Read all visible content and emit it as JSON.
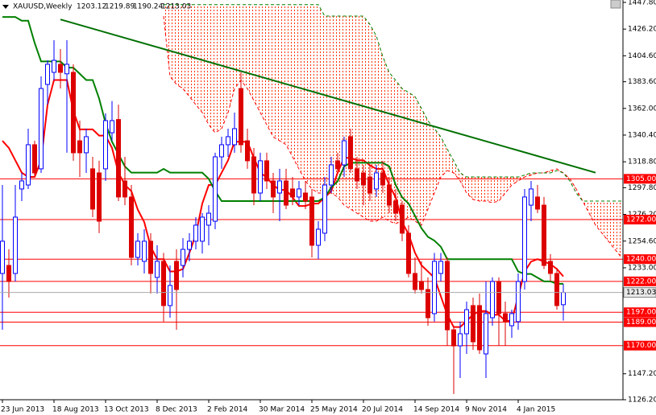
{
  "chart_data": {
    "type": "candlestick",
    "title": "XAUUSD,Weekly",
    "categories": [
      "23 Jun 2013",
      null,
      null,
      null,
      null,
      null,
      null,
      null,
      "18 Aug 2013",
      null,
      null,
      null,
      null,
      null,
      null,
      null,
      "13 Oct 2013",
      null,
      null,
      null,
      null,
      null,
      null,
      null,
      "8 Dec 2013",
      null,
      null,
      null,
      null,
      null,
      null,
      null,
      "2 Feb 2014",
      null,
      null,
      null,
      null,
      null,
      null,
      null,
      "30 Mar 2014",
      null,
      null,
      null,
      null,
      null,
      null,
      null,
      "25 May 2014",
      null,
      null,
      null,
      null,
      null,
      null,
      null,
      "20 Jul 2014",
      null,
      null,
      null,
      null,
      null,
      null,
      null,
      "14 Sep 2014",
      null,
      null,
      null,
      null,
      null,
      null,
      null,
      "9 Nov 2014",
      null,
      null,
      null,
      null,
      null,
      null,
      null,
      "4 Jan 2015",
      null,
      null,
      null,
      null,
      null,
      null,
      null,
      null,
      null,
      null,
      null,
      null,
      null,
      null,
      null,
      null
    ],
    "open": [
      1228.4,
      1234.9,
      1228.4,
      1296.8,
      1300,
      1332.6,
      1313.1,
      1381.4,
      1391.2,
      1397.7,
      1390,
      1391.2,
      1335.8,
      1326.1,
      1313.1,
      1309.8,
      1313.1,
      1342.3,
      1353,
      1303.3,
      1290.3,
      1241.4,
      1238.2,
      1254.5,
      1225.2,
      1238.2,
      1202.4,
      1238.2,
      1234.9,
      1247.9,
      1254.5,
      1254.5,
      1267.5,
      1270.7,
      1322.8,
      1332.6,
      1332.6,
      1378.1,
      1335.8,
      1322.8,
      1293.5,
      1319.6,
      1303.3,
      1293.5,
      1303.3,
      1296.8,
      1290.3,
      1293.5,
      1290.3,
      1251.2,
      1261,
      1300,
      1319.6,
      1316.3,
      1339.1,
      1313.1,
      1309.8,
      1306.5,
      1296.8,
      1309.8,
      1300,
      1287,
      1283.7,
      1261,
      1228.4,
      1221.9,
      1215.4,
      1195.9,
      1228.4,
      1238.2,
      1182.8,
      1169.8,
      1179.6,
      1202.4,
      1202.4,
      1163.3,
      1192.6,
      1221.9,
      1195.9,
      1186.1,
      1189.4,
      1221.9,
      1283.7,
      1290.3,
      1283.7,
      1238.2,
      1228.4,
      1203.12,
      null,
      null,
      null,
      null,
      null,
      null,
      null,
      null,
      null
    ],
    "high": [
      1300,
      1247.9,
      1300,
      1309.8,
      1345.6,
      1335.8,
      1387.9,
      1400.9,
      1417.2,
      1410,
      1417.2,
      1397.7,
      1352.1,
      1345.6,
      1322.8,
      1319.6,
      1358,
      1368,
      1365,
      1322.8,
      1300,
      1261,
      1264.2,
      1261,
      1251.2,
      1245,
      1234.9,
      1247.9,
      1257,
      1261,
      1274,
      1277.2,
      1283.7,
      1326.1,
      1339.1,
      1345.6,
      1358.6,
      1391.2,
      1345.6,
      1330,
      1326.1,
      1326.1,
      1309.8,
      1313.1,
      1313.1,
      1306.5,
      1303.3,
      1303.3,
      1296.8,
      1270.7,
      1306.5,
      1322.8,
      1326.1,
      1339.1,
      1345.6,
      1322.8,
      1316.3,
      1316.3,
      1316.3,
      1319.6,
      1306.5,
      1296.8,
      1287,
      1267.5,
      1241.4,
      1238.2,
      1225.2,
      1245,
      1245,
      1241.4,
      1186.1,
      1189.4,
      1205.6,
      1208.9,
      1212.1,
      1221.9,
      1225.2,
      1225.2,
      1205.6,
      1199.1,
      1228.4,
      1296.8,
      1303.3,
      1300,
      1290.3,
      1244,
      1233,
      1219.89,
      null,
      null,
      null,
      null,
      null,
      null,
      null,
      null,
      null
    ],
    "low": [
      1182.8,
      1208.9,
      1221.9,
      1287,
      1296.8,
      1306.5,
      1309.8,
      1365,
      1384.7,
      1378.1,
      1326.1,
      1319.6,
      1306.5,
      1309.8,
      1274,
      1261,
      1303.3,
      1335.8,
      1287,
      1283.7,
      1235,
      1234.9,
      1228.4,
      1212.1,
      1212.1,
      1189.4,
      1192.6,
      1182.8,
      1225.2,
      1238.2,
      1247.9,
      1244.5,
      1251.2,
      1264.2,
      1313.1,
      1322.8,
      1326.1,
      1326.1,
      1313.1,
      1283.7,
      1287,
      1296.8,
      1277.2,
      1270.7,
      1280.5,
      1283.7,
      1283.7,
      1280.5,
      1241.4,
      1240,
      1254.5,
      1293.5,
      1309.8,
      1306.5,
      1309.8,
      1296.8,
      1283.7,
      1287,
      1290.3,
      1293.5,
      1277.2,
      1270.7,
      1254.5,
      1225.2,
      1212.1,
      1212.1,
      1186.1,
      1189.4,
      1221.9,
      1169.8,
      1130.8,
      1143.8,
      1163.3,
      1166.6,
      1163.3,
      1143.8,
      1186.1,
      1169.8,
      1169.8,
      1176.3,
      1182.8,
      1215.4,
      1270.7,
      1277.2,
      1232,
      1222,
      1199.1,
      1190.24,
      null,
      null,
      null,
      null,
      null,
      null,
      null,
      null,
      null
    ],
    "close": [
      1254.5,
      1221.9,
      1274,
      1303.3,
      1332.6,
      1309.8,
      1378.1,
      1397.7,
      1400.9,
      1391.2,
      1397.7,
      1326.1,
      1326.1,
      1339.1,
      1280.5,
      1270.7,
      1352.1,
      1352.1,
      1290.3,
      1290.3,
      1241.4,
      1254.5,
      1254.5,
      1228.4,
      1238.2,
      1202.4,
      1218.7,
      1215.4,
      1247.9,
      1254.5,
      1267.5,
      1274,
      1277.2,
      1322.8,
      1332.6,
      1339.1,
      1345.6,
      1332.6,
      1319.6,
      1293.5,
      1319.6,
      1303.3,
      1290.3,
      1303.3,
      1283.7,
      1290.3,
      1296.8,
      1287,
      1251.2,
      1264.2,
      1300,
      1316.3,
      1313.1,
      1335.8,
      1313.1,
      1303.3,
      1300,
      1293.5,
      1309.8,
      1300,
      1283.7,
      1277.2,
      1261,
      1228.4,
      1215.4,
      1215.4,
      1192.6,
      1238.2,
      1238.2,
      1182.8,
      1169.8,
      1179.6,
      1199.1,
      1173.1,
      1166.6,
      1195.9,
      1221.9,
      1195.9,
      1189.4,
      1195.9,
      1221.9,
      1290.3,
      1296.8,
      1280.5,
      1234.9,
      1228.4,
      1202.4,
      1213.03,
      null,
      null,
      null,
      null,
      null,
      null,
      null,
      null,
      null
    ],
    "up_color": "#0000ff",
    "down_color": "#dd0000",
    "lines": [
      {
        "color": "#ff0000",
        "values": [
          1335.8,
          1330,
          1320,
          1310,
          1306.5,
          1306.5,
          1320,
          1365,
          1385,
          1385,
          1385,
          1360,
          1345,
          1345,
          1345,
          1340,
          1340,
          1330,
          1310,
          1300,
          1295,
          1280,
          1270,
          1250,
          1240,
          1240,
          1230,
          1230,
          1232,
          1245,
          1260,
          1285,
          1300,
          1300,
          1310,
          1320,
          1335,
          1335,
          1335,
          1322,
          1310,
          1306,
          1300,
          1296,
          1296,
          1290,
          1283,
          1283,
          1285,
          1285,
          1290,
          1295,
          1310,
          1322,
          1322,
          1320,
          1320,
          1316,
          1313,
          1313,
          1300,
          1290,
          1270,
          1260,
          1245,
          1235,
          1230,
          1225,
          1210,
          1195,
          1185,
          1185,
          1190,
          1195,
          1198,
          1198,
          1195,
          1195,
          1190,
          1190,
          1210,
          1230,
          1238,
          1240,
          1238,
          1236,
          1232,
          1226,
          null,
          null,
          null,
          null,
          null,
          null,
          null,
          null,
          null
        ]
      },
      {
        "color": "#008000",
        "values": [
          1436,
          1436,
          1436,
          1433,
          1433,
          1415,
          1400,
          1400,
          1400,
          1400,
          1395,
          1395,
          1390,
          1385,
          1385,
          1370,
          1350,
          1335,
          1325,
          1315,
          1310,
          1310,
          1310,
          1310,
          1310,
          1313,
          1310,
          1310,
          1310,
          1310,
          1310,
          1310,
          1305,
          1295,
          1287,
          1287,
          1287,
          1287,
          1287,
          1287,
          1287,
          1287,
          1287,
          1287,
          1287,
          1287,
          1287,
          1287,
          1287,
          1287,
          1290,
          1298,
          1303,
          1315,
          1318,
          1318,
          1318,
          1318,
          1318,
          1318,
          1315,
          1300,
          1290,
          1285,
          1275,
          1265,
          1258,
          1255,
          1250,
          1240,
          1240,
          1240,
          1240,
          1240,
          1240,
          1240,
          1240,
          1240,
          1240,
          1240,
          1230,
          1228,
          1228,
          1225,
          1222,
          1222,
          1220,
          1220,
          null,
          null,
          null,
          null,
          null,
          null,
          null,
          null,
          null
        ]
      }
    ],
    "cloud": {
      "color": "#ff0000",
      "span_a_color": "#ff0000",
      "span_b_color": "#008000",
      "span_a": [
        null,
        null,
        null,
        null,
        null,
        null,
        null,
        null,
        null,
        null,
        null,
        null,
        null,
        null,
        null,
        null,
        null,
        null,
        null,
        null,
        null,
        null,
        null,
        null,
        null,
        1436.7,
        1387.9,
        1381.4,
        1378,
        1371.6,
        1365,
        1358.6,
        1348.8,
        1342.3,
        1345.6,
        1358.6,
        1378,
        1384.7,
        1378,
        1368.4,
        1358.6,
        1348.8,
        1339,
        1335.8,
        1332.6,
        1322.8,
        1313,
        1303.3,
        1296.8,
        1293.5,
        1293.5,
        1293.5,
        1290.3,
        1283.7,
        1280.5,
        1277.2,
        1274,
        1270.7,
        1270.7,
        1274,
        1270.7,
        1268.8,
        1270.7,
        1274,
        1270.7,
        1267.5,
        1280.5,
        1293.5,
        1306.5,
        1311.7,
        1309.8,
        1303.3,
        1293.5,
        1288.3,
        1287,
        1287,
        1285.7,
        1287,
        1293.5,
        1300,
        1303.3,
        1306.5,
        1308,
        1309.8,
        1309.8,
        1311.7,
        1313,
        1309.8,
        1305.2,
        1296.8,
        1287,
        1277.2,
        1267.5,
        1261,
        1254.5,
        1248,
        1241.4
      ],
      "span_b": [
        null,
        null,
        null,
        null,
        null,
        null,
        null,
        null,
        null,
        null,
        null,
        null,
        null,
        null,
        null,
        null,
        null,
        null,
        null,
        null,
        null,
        null,
        null,
        null,
        null,
        1446,
        1446,
        1446,
        1446,
        1446,
        1446,
        1446,
        1446,
        1446,
        1446,
        1446,
        1446,
        1446,
        1446,
        1446,
        1446,
        1446,
        1446,
        1446,
        1446,
        1446,
        1446,
        1446,
        1446,
        1446,
        1436.7,
        1436.7,
        1436.7,
        1436.7,
        1436.7,
        1436.7,
        1436.7,
        1430,
        1420.5,
        1404,
        1391,
        1384.7,
        1378,
        1375,
        1371.6,
        1362,
        1352,
        1345.6,
        1339,
        1329,
        1319.6,
        1309.8,
        1306.5,
        1306.5,
        1306.5,
        1306.5,
        1306.5,
        1306.5,
        1306.5,
        1306.5,
        1306.5,
        1308,
        1309.8,
        1309.8,
        1309.8,
        1309.8,
        1311.7,
        1309.8,
        1303.3,
        1293.5,
        1287,
        1287,
        1287,
        1287,
        1287,
        1287,
        1287
      ]
    },
    "trendline": {
      "color": "#007000",
      "x": [
        9,
        92
      ],
      "values": [
        1434,
        1310
      ]
    },
    "levels_color": "#ff0000",
    "levels": [
      {
        "value": 1305,
        "label": "1305.00"
      },
      {
        "value": 1272,
        "label": "1272.00"
      },
      {
        "value": 1240,
        "label": "1240.00"
      },
      {
        "value": 1222,
        "label": "1222.00"
      },
      {
        "value": 1197,
        "label": "1197.00"
      },
      {
        "value": 1189,
        "label": "1189.00"
      },
      {
        "value": 1170,
        "label": "1170.00"
      }
    ],
    "ylim": [
      1126.2,
      1449.75
    ],
    "yticks": [
      {
        "value": 1447.8,
        "label": "1447.80"
      },
      {
        "value": 1426.2,
        "label": "1426.20"
      },
      {
        "value": 1404.6,
        "label": "1404.60"
      },
      {
        "value": 1383.6,
        "label": "1383.60"
      },
      {
        "value": 1362,
        "label": "1362.00"
      },
      {
        "value": 1340.4,
        "label": "1340.40"
      },
      {
        "value": 1318.8,
        "label": "1318.80"
      },
      {
        "value": 1297.8,
        "label": "1297.80"
      },
      {
        "value": 1276.2,
        "label": "1276.20"
      },
      {
        "value": 1254.6,
        "label": "1254.60"
      },
      {
        "value": 1233,
        "label": "1233.00"
      },
      {
        "value": 1147.2,
        "label": "1147.20"
      },
      {
        "value": 1126.2,
        "label": "1126.20"
      }
    ],
    "grid": false
  }
}
